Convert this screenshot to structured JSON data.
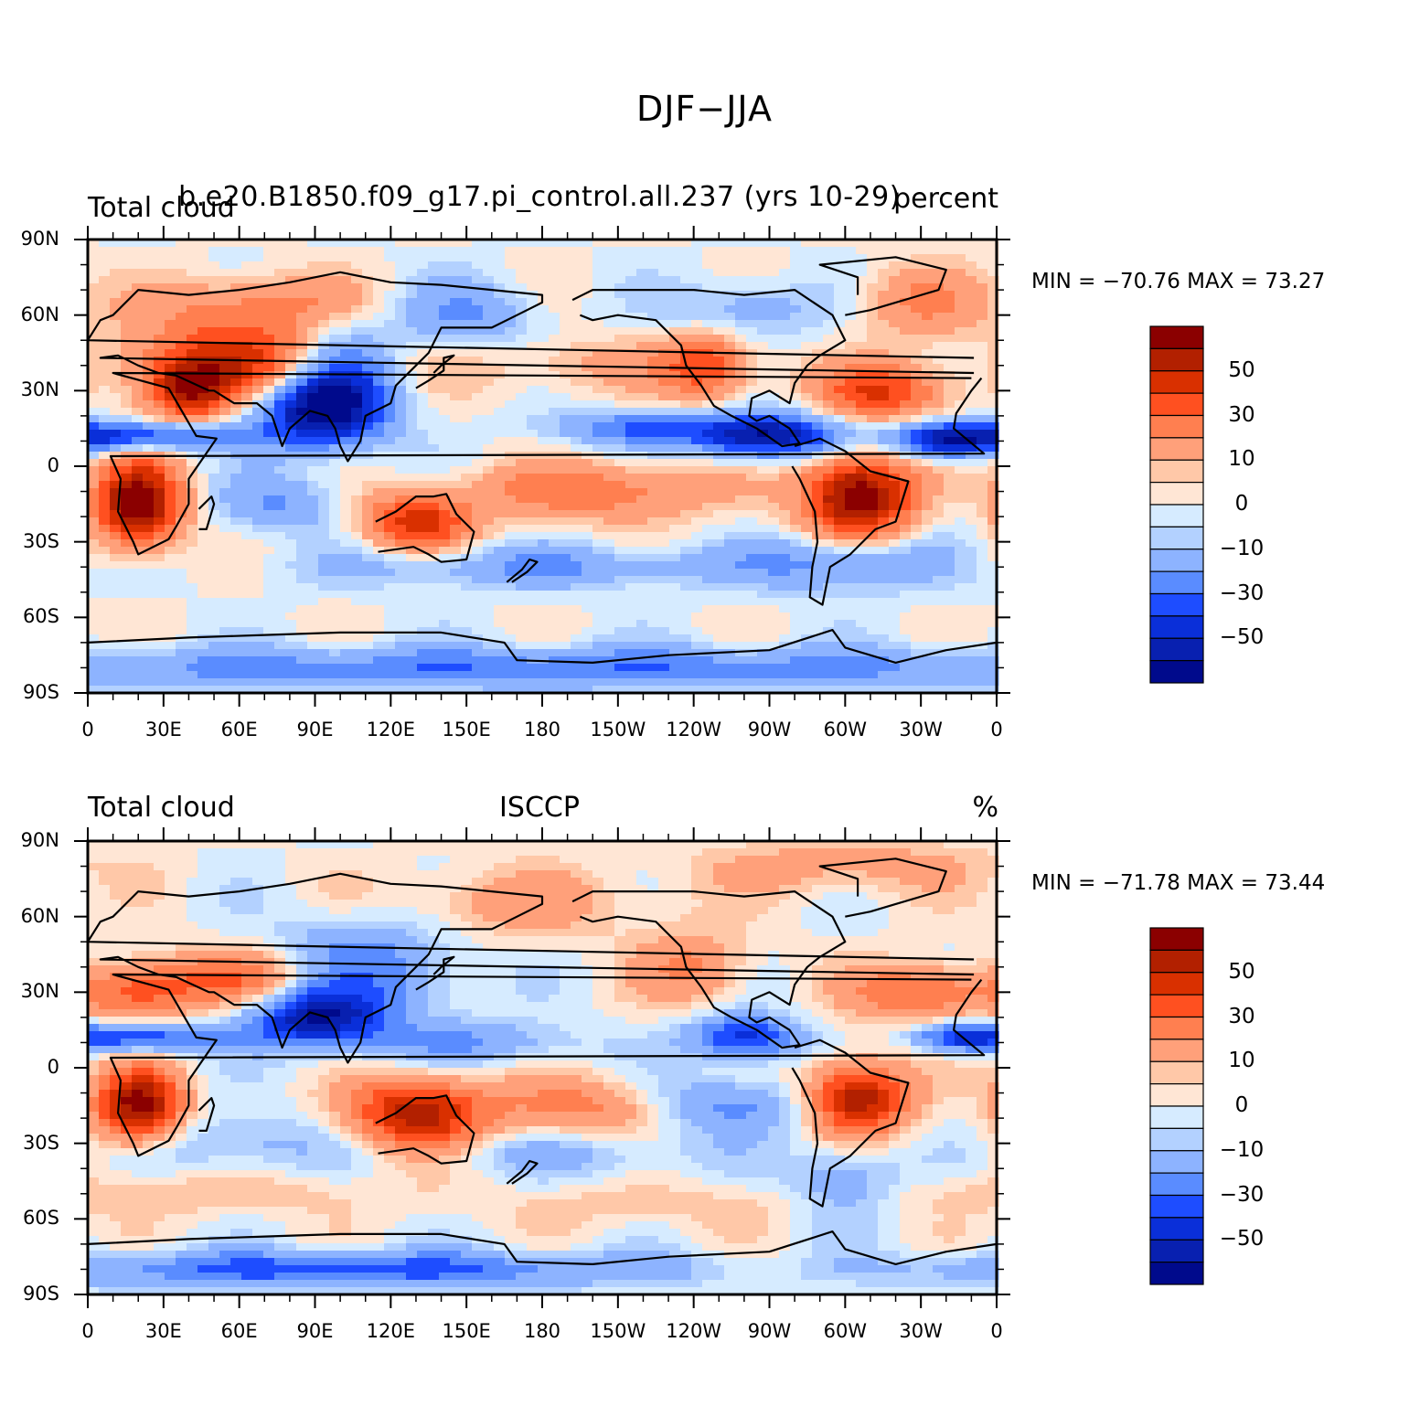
{
  "figure_title": "DJF−JJA",
  "panels": [
    {
      "left_string": "Total cloud",
      "center_string": "b.e20.B1850.f09_g17.pi_control.all.237 (yrs 10-29)",
      "right_string": "percent",
      "min_max": "MIN = −70.76  MAX =   73.27"
    },
    {
      "left_string": "Total cloud",
      "center_string": "ISCCP",
      "right_string": "%",
      "min_max": "MIN = −71.78  MAX =   73.44"
    }
  ],
  "axes": {
    "y_ticks": [
      "90N",
      "60N",
      "30N",
      "0",
      "30S",
      "60S",
      "90S"
    ],
    "x_ticks": [
      "0",
      "30E",
      "60E",
      "90E",
      "120E",
      "150E",
      "180",
      "150W",
      "120W",
      "90W",
      "60W",
      "30W",
      "0"
    ]
  },
  "colorbar": {
    "labels": [
      "50",
      "30",
      "10",
      "0",
      "−10",
      "−30",
      "−50"
    ],
    "colors": [
      "#8b0000",
      "#b22000",
      "#d93000",
      "#ff5020",
      "#ff7f50",
      "#ffa07a",
      "#ffc8a8",
      "#ffe6d5",
      "#d6ebff",
      "#b3d1ff",
      "#8db3ff",
      "#5a8cff",
      "#1e4dff",
      "#0a2fd9",
      "#0820b0",
      "#000a8c"
    ]
  },
  "chart_data": [
    {
      "type": "heatmap",
      "title": "DJF−JJA",
      "left_string": "Total cloud",
      "center_string": "b.e20.B1850.f09_g17.pi_control.all.237 (yrs 10-29)",
      "right_string": "percent",
      "min": -70.76,
      "max": 73.27,
      "xlim": [
        0,
        360
      ],
      "ylim": [
        -90,
        90
      ]
    },
    {
      "type": "heatmap",
      "title": "DJF−JJA",
      "left_string": "Total cloud",
      "center_string": "ISCCP",
      "right_string": "%",
      "min": -71.78,
      "max": 73.44,
      "xlim": [
        0,
        360
      ],
      "ylim": [
        -90,
        90
      ]
    }
  ]
}
